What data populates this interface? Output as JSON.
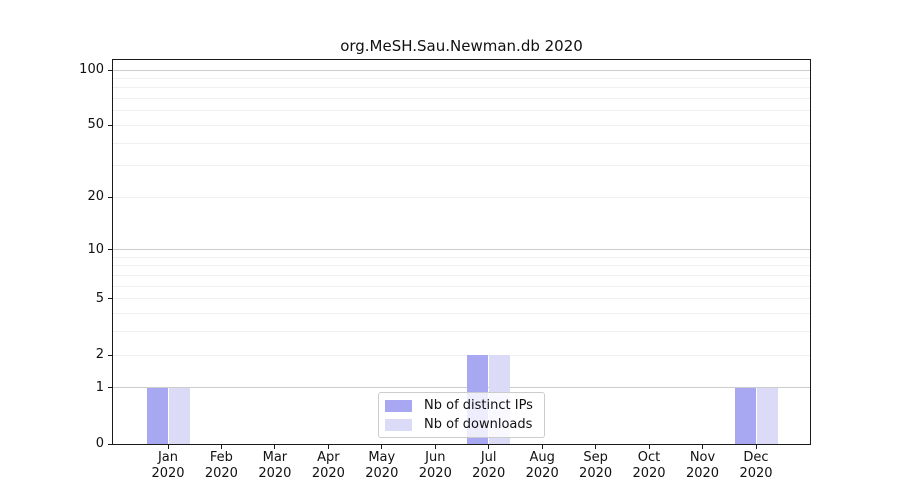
{
  "chart_data": {
    "type": "bar",
    "title": "org.MeSH.Sau.Newman.db 2020",
    "months": [
      "Jan",
      "Feb",
      "Mar",
      "Apr",
      "May",
      "Jun",
      "Jul",
      "Aug",
      "Sep",
      "Oct",
      "Nov",
      "Dec"
    ],
    "year": "2020",
    "categories": [
      "Jan 2020",
      "Feb 2020",
      "Mar 2020",
      "Apr 2020",
      "May 2020",
      "Jun 2020",
      "Jul 2020",
      "Aug 2020",
      "Sep 2020",
      "Oct 2020",
      "Nov 2020",
      "Dec 2020"
    ],
    "series": [
      {
        "name": "Nb of distinct IPs",
        "color": "#a7a7f2",
        "values": [
          1,
          0,
          0,
          0,
          0,
          0,
          2,
          0,
          0,
          0,
          0,
          1
        ]
      },
      {
        "name": "Nb of downloads",
        "color": "#dbdbf8",
        "values": [
          1,
          0,
          0,
          0,
          0,
          0,
          2,
          0,
          0,
          0,
          0,
          1
        ]
      }
    ],
    "yticks": [
      100,
      50,
      20,
      10,
      5,
      2,
      1,
      0
    ],
    "ylim": [
      0,
      113
    ],
    "scale": "log1p",
    "grid": {
      "major_values": [
        1,
        10,
        100
      ],
      "minor_values": [
        2,
        3,
        4,
        5,
        6,
        7,
        8,
        9,
        20,
        30,
        40,
        50,
        60,
        70,
        80,
        90
      ],
      "major_color": "#cccccc",
      "minor_color": "#f0f0f0"
    },
    "legend_position": "lower center",
    "spine_color": "#1a1a1a"
  }
}
